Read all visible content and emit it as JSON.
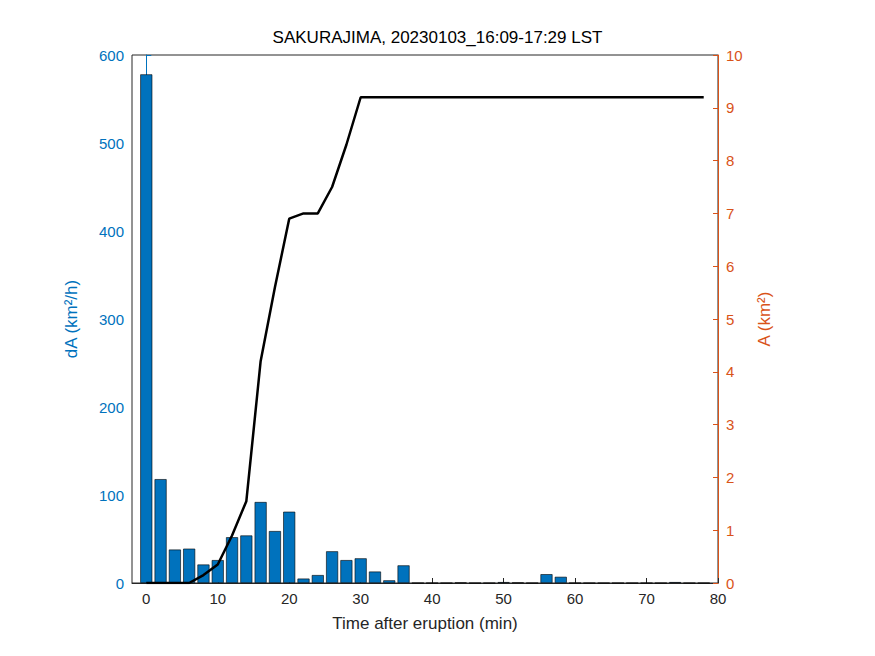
{
  "chart_data": {
    "type": "bar",
    "title": "SAKURAJIMA, 20230103_16:09-17:29 LST",
    "x_label": "Time after eruption (min)",
    "y_label": "dA (km²/h)",
    "y2_label": "A (km²)",
    "x": [
      0,
      2,
      4,
      6,
      8,
      10,
      12,
      14,
      16,
      18,
      20,
      22,
      24,
      26,
      28,
      30,
      32,
      34,
      36,
      38,
      40,
      42,
      44,
      46,
      48,
      50,
      52,
      54,
      56,
      58,
      60,
      62,
      64,
      66,
      68,
      70,
      72,
      74,
      76,
      78
    ],
    "xlim": [
      -2,
      80
    ],
    "xticks": [
      0,
      10,
      20,
      30,
      40,
      50,
      60,
      70,
      80
    ],
    "ylim": [
      0,
      600
    ],
    "yticks": [
      0,
      100,
      200,
      300,
      400,
      500,
      600
    ],
    "y2lim": [
      0,
      10
    ],
    "y2ticks": [
      0,
      1,
      2,
      3,
      4,
      5,
      6,
      7,
      8,
      9,
      10
    ],
    "grid": false,
    "series": [
      {
        "type": "bar",
        "axis": "y",
        "color": "#0072bd",
        "values": [
          578,
          118,
          38,
          39,
          21,
          26,
          52,
          54,
          92,
          59,
          81,
          5,
          9,
          36,
          26,
          28,
          13,
          3,
          20,
          0,
          0,
          0,
          0.5,
          0,
          0,
          1,
          0.5,
          0,
          10,
          7,
          0,
          0,
          0,
          0,
          0,
          0,
          0,
          1,
          0,
          0
        ]
      },
      {
        "type": "line",
        "axis": "y2",
        "color": "#000000",
        "values": [
          0,
          0,
          0,
          0,
          0.15,
          0.35,
          0.9,
          1.55,
          4.2,
          5.6,
          6.9,
          7.0,
          7.0,
          7.5,
          8.3,
          9.2,
          9.2,
          9.2,
          9.2,
          9.2,
          9.2,
          9.2,
          9.2,
          9.2,
          9.2,
          9.2,
          9.2,
          9.2,
          9.2,
          9.2,
          9.2,
          9.2,
          9.2,
          9.2,
          9.2,
          9.2,
          9.2,
          9.2,
          9.2,
          9.2
        ]
      }
    ]
  }
}
